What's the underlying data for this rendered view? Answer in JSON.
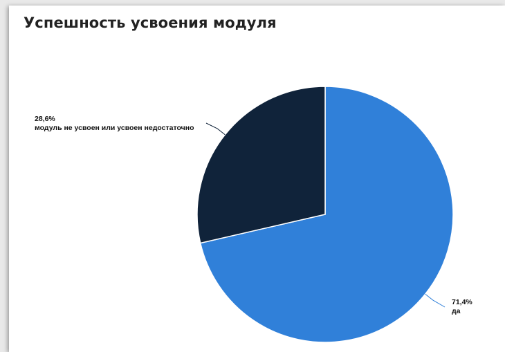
{
  "chart_data": {
    "type": "pie",
    "title": "Успешность усвоения модуля",
    "slices": [
      {
        "label": "да",
        "value": 71.4,
        "value_label": "71,4%",
        "color": "#3080d9"
      },
      {
        "label": "модуль не усвоен или усвоен недостаточно",
        "value": 28.6,
        "value_label": "28,6%",
        "color": "#10233a"
      }
    ],
    "legend": "none",
    "labels": "outside-with-leader-lines"
  }
}
